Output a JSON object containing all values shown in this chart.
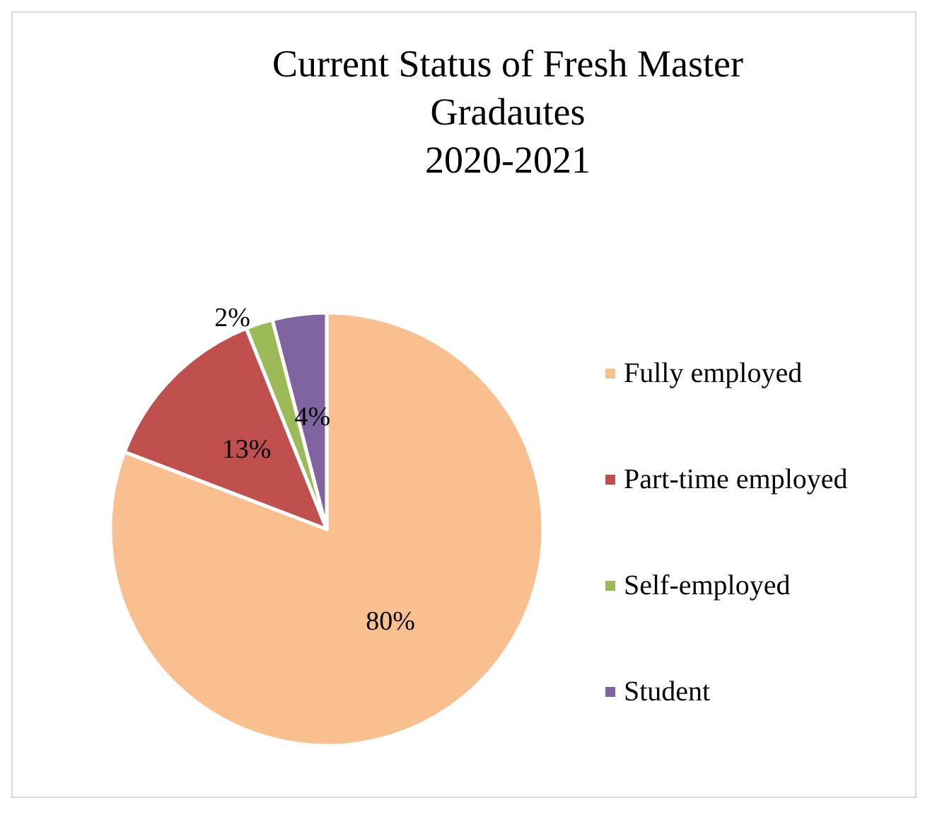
{
  "chart_data": {
    "type": "pie",
    "title": "Current Status of Fresh Master\nGradautes\n2020-2021",
    "categories": [
      "Fully employed",
      "Part-time employed",
      "Self-employed",
      "Student"
    ],
    "values": [
      80,
      13,
      2,
      4
    ],
    "colors": [
      "#f9bf8f",
      "#c0504d",
      "#9bbb59",
      "#8064a2"
    ],
    "value_labels": [
      "80%",
      "13%",
      "2%",
      "4%"
    ],
    "legend": "right"
  }
}
